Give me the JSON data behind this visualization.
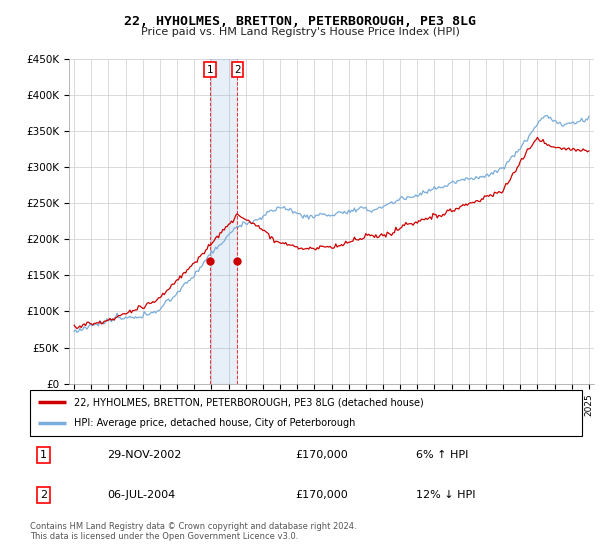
{
  "title": "22, HYHOLMES, BRETTON, PETERBOROUGH, PE3 8LG",
  "subtitle": "Price paid vs. HM Land Registry's House Price Index (HPI)",
  "ylim": [
    0,
    450000
  ],
  "yticks": [
    0,
    50000,
    100000,
    150000,
    200000,
    250000,
    300000,
    350000,
    400000,
    450000
  ],
  "xlim_start": 1994.7,
  "xlim_end": 2025.3,
  "property_color": "#cc0000",
  "hpi_color": "#7aadda",
  "transaction1_year": 2002.92,
  "transaction2_year": 2004.52,
  "transaction1_price": 170000,
  "transaction2_price": 170000,
  "legend_property": "22, HYHOLMES, BRETTON, PETERBOROUGH, PE3 8LG (detached house)",
  "legend_hpi": "HPI: Average price, detached house, City of Peterborough",
  "table_rows": [
    {
      "num": "1",
      "date": "29-NOV-2002",
      "price": "£170,000",
      "hpi": "6% ↑ HPI"
    },
    {
      "num": "2",
      "date": "06-JUL-2004",
      "price": "£170,000",
      "hpi": "12% ↓ HPI"
    }
  ],
  "footnote": "Contains HM Land Registry data © Crown copyright and database right 2024.\nThis data is licensed under the Open Government Licence v3.0.",
  "background_color": "#ffffff",
  "grid_color": "#cccccc"
}
